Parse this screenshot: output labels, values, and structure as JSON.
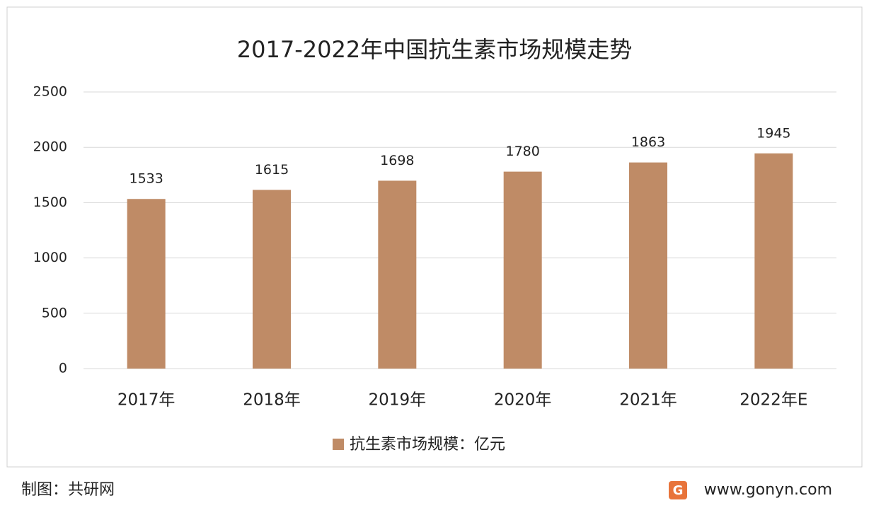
{
  "chart_data": {
    "type": "bar",
    "title": "2017-2022年中国抗生素市场规模走势",
    "categories": [
      "2017年",
      "2018年",
      "2019年",
      "2020年",
      "2021年",
      "2022年E"
    ],
    "series": [
      {
        "name": "抗生素市场规模：亿元",
        "color": "#bf8b66",
        "values": [
          1533,
          1615,
          1698,
          1780,
          1863,
          1945
        ]
      }
    ],
    "ylim": [
      0,
      2500
    ],
    "yticks": [
      0,
      500,
      1000,
      1500,
      2000,
      2500
    ],
    "grid": true,
    "legend": "bottom"
  },
  "footer": {
    "source": "制图：共研网",
    "website": "www.gonyn.com"
  }
}
